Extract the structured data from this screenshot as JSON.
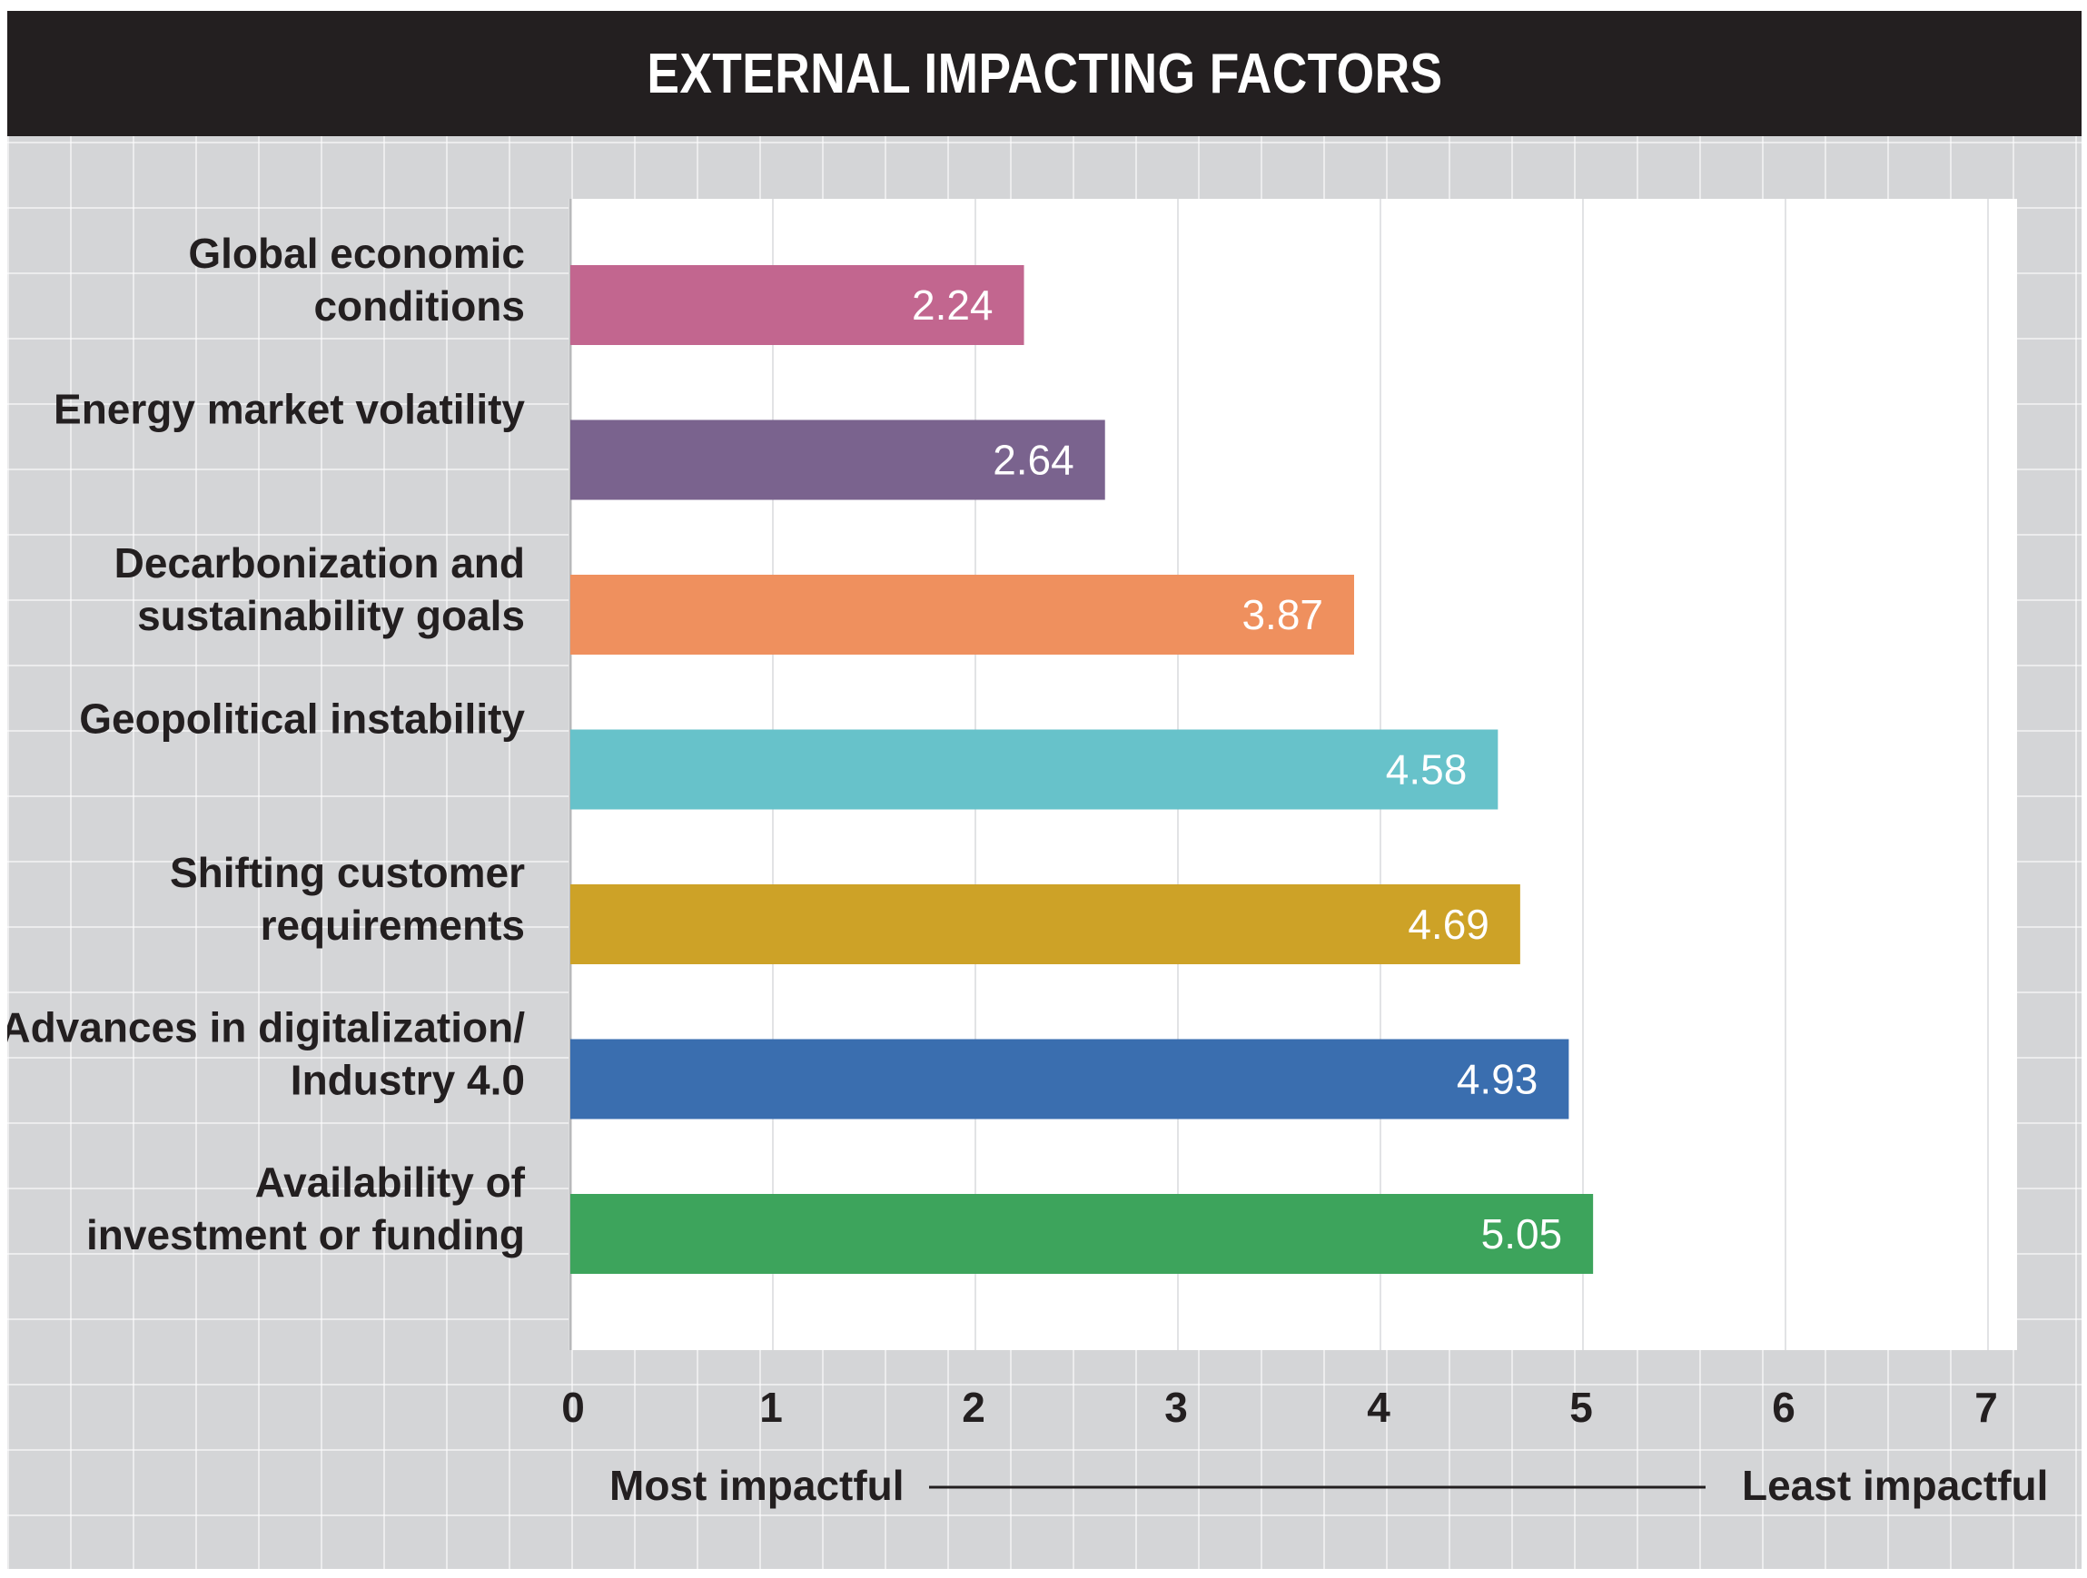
{
  "title": "EXTERNAL IMPACTING FACTORS",
  "chart_data": {
    "type": "bar",
    "orientation": "horizontal",
    "title": "EXTERNAL IMPACTING FACTORS",
    "categories": [
      [
        "Global economic",
        "conditions"
      ],
      [
        "Energy market volatility"
      ],
      [
        "Decarbonization and",
        "sustainability goals"
      ],
      [
        "Geopolitical instability"
      ],
      [
        "Shifting customer",
        "requirements"
      ],
      [
        "Advances in digitalization/",
        "Industry 4.0"
      ],
      [
        "Availability of",
        "investment or funding"
      ]
    ],
    "values": [
      2.24,
      2.64,
      3.87,
      4.58,
      4.69,
      4.93,
      5.05
    ],
    "value_labels": [
      "2.24",
      "2.64",
      "3.87",
      "4.58",
      "4.69",
      "4.93",
      "5.05"
    ],
    "colors": [
      "#c2668f",
      "#7a638e",
      "#ef905e",
      "#67c2ca",
      "#cda227",
      "#3a6eaf",
      "#3da45c"
    ],
    "xlim": [
      0,
      7
    ],
    "xticks": [
      "0",
      "1",
      "2",
      "3",
      "4",
      "5",
      "6",
      "7"
    ],
    "grid": "vertical",
    "scale_left_label": "Most impactful",
    "scale_right_label": "Least impactful"
  }
}
